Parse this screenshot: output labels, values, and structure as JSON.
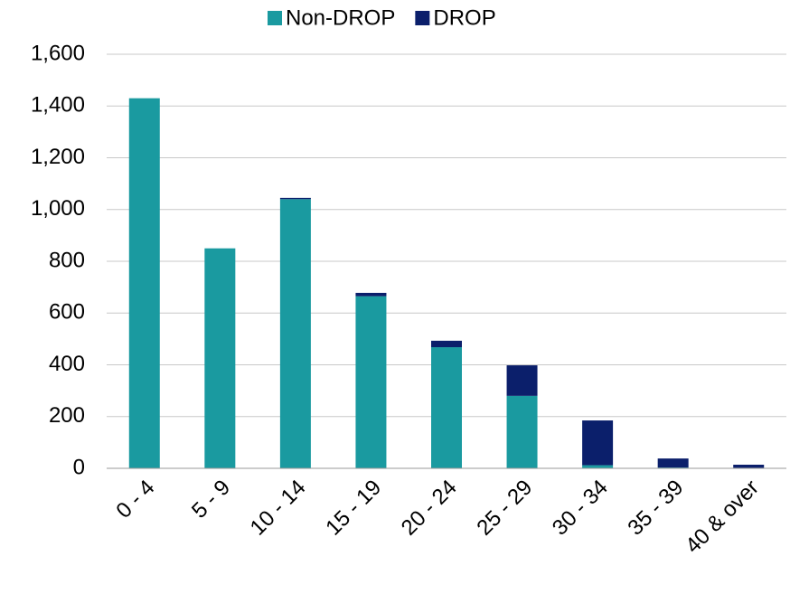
{
  "chart_data": {
    "type": "stacked_bar",
    "categories": [
      "0 - 4",
      "5 - 9",
      "10 - 14",
      "15 - 19",
      "20 - 24",
      "25 - 29",
      "30 - 34",
      "35 - 39",
      "40 & over"
    ],
    "series": [
      {
        "name": "Non-DROP",
        "color": "#1a9aa0",
        "values": [
          1430,
          850,
          1040,
          665,
          468,
          280,
          12,
          3,
          2
        ]
      },
      {
        "name": "DROP",
        "color": "#0b1f6b",
        "values": [
          0,
          0,
          5,
          13,
          25,
          118,
          173,
          35,
          12
        ]
      }
    ],
    "ylim": [
      0,
      1600
    ],
    "yticks": [
      0,
      200,
      400,
      600,
      800,
      {
        "value": 1000,
        "label": "1,000"
      },
      {
        "value": 1200,
        "label": "1,200"
      },
      {
        "value": 1400,
        "label": "1,400"
      },
      {
        "value": 1600,
        "label": "1,600"
      }
    ],
    "grid": true,
    "legend": "top"
  }
}
